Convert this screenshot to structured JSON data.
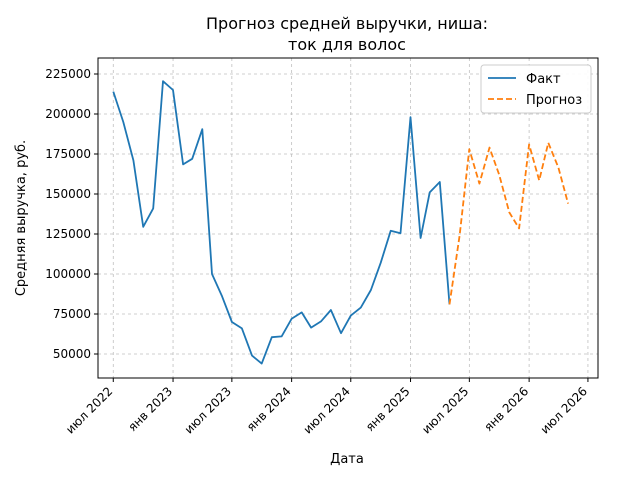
{
  "chart_data": {
    "type": "line",
    "title_line1": "Прогноз средней выручки, ниша:",
    "title_line2": "ток для волос",
    "xlabel": "Дата",
    "ylabel": "Средняя выручка, руб.",
    "ylim": [
      35000,
      235000
    ],
    "yticks": [
      50000,
      75000,
      100000,
      125000,
      150000,
      175000,
      200000,
      225000
    ],
    "xlim": [
      "2022-05-15",
      "2026-08-01"
    ],
    "xticks": [
      {
        "date": "2022-07-01",
        "label": "июл 2022"
      },
      {
        "date": "2023-01-01",
        "label": "янв 2023"
      },
      {
        "date": "2023-07-01",
        "label": "июл 2023"
      },
      {
        "date": "2024-01-01",
        "label": "янв 2024"
      },
      {
        "date": "2024-07-01",
        "label": "июл 2024"
      },
      {
        "date": "2025-01-01",
        "label": "янв 2025"
      },
      {
        "date": "2025-07-01",
        "label": "июл 2025"
      },
      {
        "date": "2026-01-01",
        "label": "янв 2026"
      },
      {
        "date": "2026-07-01",
        "label": "июл 2026"
      }
    ],
    "grid": true,
    "legend_position": "top-right",
    "series": [
      {
        "name": "Факт",
        "style": "solid",
        "color": "#1f77b4",
        "points": [
          [
            "2022-07-01",
            214000
          ],
          [
            "2022-08-01",
            195000
          ],
          [
            "2022-09-01",
            171000
          ],
          [
            "2022-10-01",
            129500
          ],
          [
            "2022-11-01",
            141000
          ],
          [
            "2022-12-01",
            220500
          ],
          [
            "2023-01-01",
            215000
          ],
          [
            "2023-02-01",
            168500
          ],
          [
            "2023-03-01",
            172000
          ],
          [
            "2023-04-01",
            190500
          ],
          [
            "2023-05-01",
            100000
          ],
          [
            "2023-06-01",
            86000
          ],
          [
            "2023-07-01",
            70000
          ],
          [
            "2023-08-01",
            66000
          ],
          [
            "2023-09-01",
            49000
          ],
          [
            "2023-10-01",
            44000
          ],
          [
            "2023-11-01",
            60500
          ],
          [
            "2023-12-01",
            61000
          ],
          [
            "2024-01-01",
            72000
          ],
          [
            "2024-02-01",
            76000
          ],
          [
            "2024-03-01",
            66500
          ],
          [
            "2024-04-01",
            70500
          ],
          [
            "2024-05-01",
            77500
          ],
          [
            "2024-06-01",
            63000
          ],
          [
            "2024-07-01",
            74000
          ],
          [
            "2024-08-01",
            79000
          ],
          [
            "2024-09-01",
            90000
          ],
          [
            "2024-10-01",
            107000
          ],
          [
            "2024-11-01",
            127000
          ],
          [
            "2024-12-01",
            125500
          ],
          [
            "2025-01-01",
            198000
          ],
          [
            "2025-02-01",
            122500
          ],
          [
            "2025-03-01",
            151000
          ],
          [
            "2025-04-01",
            157500
          ],
          [
            "2025-05-01",
            81000
          ]
        ]
      },
      {
        "name": "Прогноз",
        "style": "dashed",
        "color": "#ff7f0e",
        "points": [
          [
            "2025-05-01",
            81000
          ],
          [
            "2025-06-01",
            124000
          ],
          [
            "2025-07-01",
            178000
          ],
          [
            "2025-08-01",
            156500
          ],
          [
            "2025-09-01",
            179000
          ],
          [
            "2025-10-01",
            162000
          ],
          [
            "2025-11-01",
            138500
          ],
          [
            "2025-12-01",
            128500
          ],
          [
            "2026-01-01",
            181000
          ],
          [
            "2026-02-01",
            158500
          ],
          [
            "2026-03-01",
            182000
          ],
          [
            "2026-04-01",
            166500
          ],
          [
            "2026-05-01",
            144000
          ]
        ]
      }
    ]
  }
}
